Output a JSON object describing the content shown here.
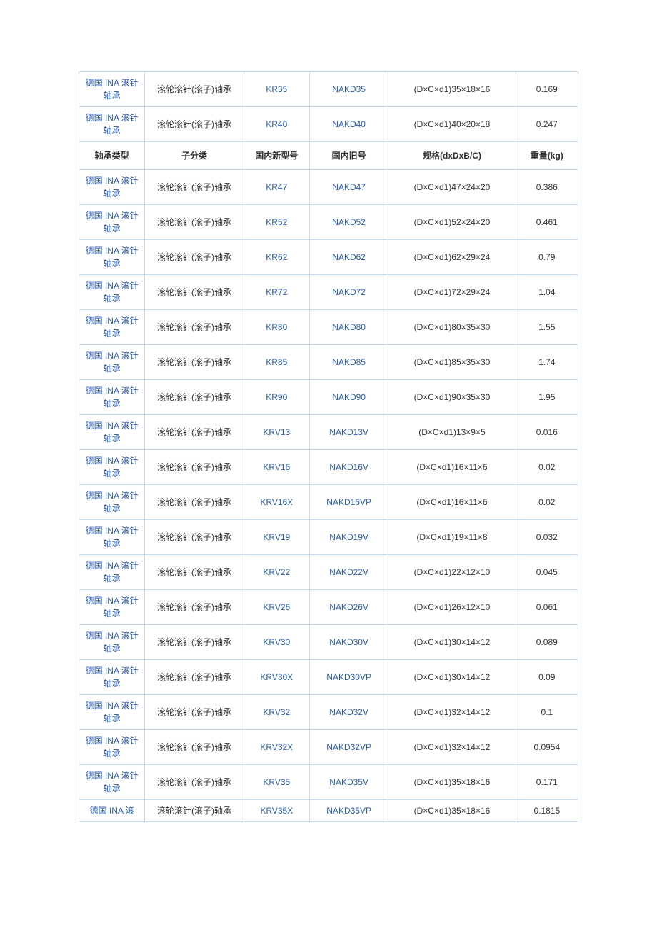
{
  "colors": {
    "border": "#c5d8ed",
    "link": "#2a5db0",
    "text": "#333333",
    "background": "#ffffff"
  },
  "columns": {
    "widths_pct": [
      13.2,
      19.8,
      13.2,
      15.8,
      25.5,
      12.5
    ]
  },
  "header": {
    "c0": "轴承类型",
    "c1": "子分类",
    "c2": "国内新型号",
    "c3": "国内旧号",
    "c4": "规格(dxDxB/C)",
    "c5": "重量(kg)"
  },
  "common": {
    "brand": "德国 INA 滚针轴承",
    "brand_partial": "德国 INA 滚",
    "category": "滚轮滚针(滚子)轴承"
  },
  "rows": [
    {
      "type": "data",
      "new_model": "KR35",
      "old_model": "NAKD35",
      "spec": "(D×C×d1)35×18×16",
      "weight": "0.169"
    },
    {
      "type": "data",
      "new_model": "KR40",
      "old_model": "NAKD40",
      "spec": "(D×C×d1)40×20×18",
      "weight": "0.247"
    },
    {
      "type": "header"
    },
    {
      "type": "data",
      "new_model": "KR47",
      "old_model": "NAKD47",
      "spec": "(D×C×d1)47×24×20",
      "weight": "0.386"
    },
    {
      "type": "data",
      "new_model": "KR52",
      "old_model": "NAKD52",
      "spec": "(D×C×d1)52×24×20",
      "weight": "0.461"
    },
    {
      "type": "data",
      "new_model": "KR62",
      "old_model": "NAKD62",
      "spec": "(D×C×d1)62×29×24",
      "weight": "0.79"
    },
    {
      "type": "data",
      "new_model": "KR72",
      "old_model": "NAKD72",
      "spec": "(D×C×d1)72×29×24",
      "weight": "1.04"
    },
    {
      "type": "data",
      "new_model": "KR80",
      "old_model": "NAKD80",
      "spec": "(D×C×d1)80×35×30",
      "weight": "1.55"
    },
    {
      "type": "data",
      "new_model": "KR85",
      "old_model": "NAKD85",
      "spec": "(D×C×d1)85×35×30",
      "weight": "1.74"
    },
    {
      "type": "data",
      "new_model": "KR90",
      "old_model": "NAKD90",
      "spec": "(D×C×d1)90×35×30",
      "weight": "1.95"
    },
    {
      "type": "data",
      "new_model": "KRV13",
      "old_model": "NAKD13V",
      "spec": "(D×C×d1)13×9×5",
      "weight": "0.016"
    },
    {
      "type": "data",
      "new_model": "KRV16",
      "old_model": "NAKD16V",
      "spec": "(D×C×d1)16×11×6",
      "weight": "0.02"
    },
    {
      "type": "data",
      "new_model": "KRV16X",
      "old_model": "NAKD16VP",
      "spec": "(D×C×d1)16×11×6",
      "weight": "0.02"
    },
    {
      "type": "data",
      "new_model": "KRV19",
      "old_model": "NAKD19V",
      "spec": "(D×C×d1)19×11×8",
      "weight": "0.032"
    },
    {
      "type": "data",
      "new_model": "KRV22",
      "old_model": "NAKD22V",
      "spec": "(D×C×d1)22×12×10",
      "weight": "0.045"
    },
    {
      "type": "data",
      "new_model": "KRV26",
      "old_model": "NAKD26V",
      "spec": "(D×C×d1)26×12×10",
      "weight": "0.061"
    },
    {
      "type": "data",
      "new_model": "KRV30",
      "old_model": "NAKD30V",
      "spec": "(D×C×d1)30×14×12",
      "weight": "0.089"
    },
    {
      "type": "data",
      "new_model": "KRV30X",
      "old_model": "NAKD30VP",
      "spec": "(D×C×d1)30×14×12",
      "weight": "0.09"
    },
    {
      "type": "data",
      "new_model": "KRV32",
      "old_model": "NAKD32V",
      "spec": "(D×C×d1)32×14×12",
      "weight": "0.1"
    },
    {
      "type": "data",
      "new_model": "KRV32X",
      "old_model": "NAKD32VP",
      "spec": "(D×C×d1)32×14×12",
      "weight": "0.0954"
    },
    {
      "type": "data",
      "new_model": "KRV35",
      "old_model": "NAKD35V",
      "spec": "(D×C×d1)35×18×16",
      "weight": "0.171"
    },
    {
      "type": "data",
      "new_model": "KRV35X",
      "old_model": "NAKD35VP",
      "spec": "(D×C×d1)35×18×16",
      "weight": "0.1815",
      "partial_brand": true
    }
  ]
}
